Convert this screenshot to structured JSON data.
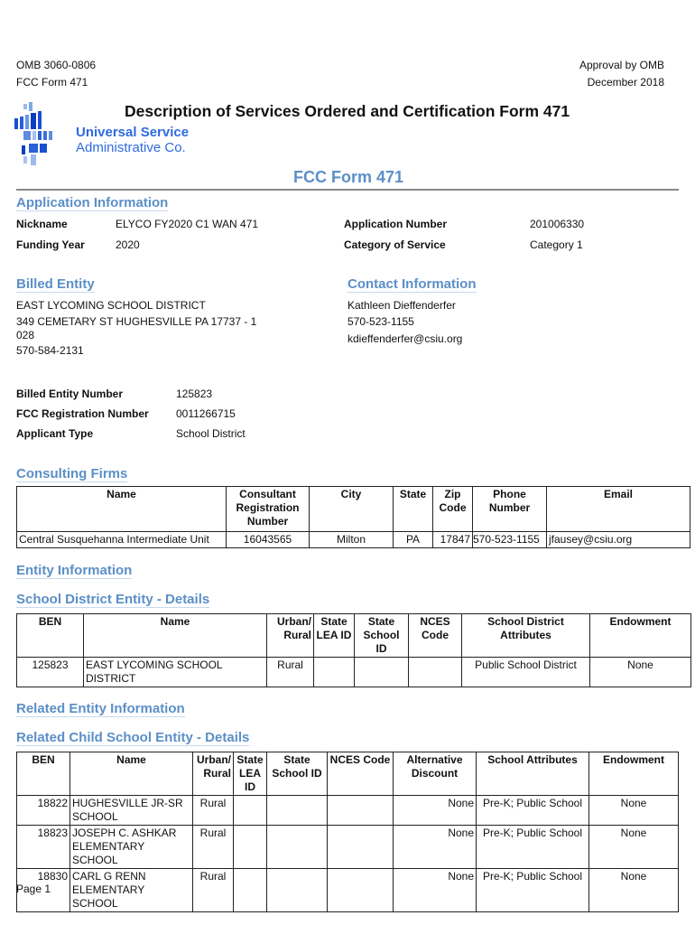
{
  "header": {
    "omb": "OMB 3060-0806",
    "form": "FCC Form 471",
    "approval": "Approval by OMB",
    "date": "December 2018",
    "title": "Description of Services Ordered and Certification Form 471",
    "logo_line1": "Universal Service",
    "logo_line2": "Administrative Co.",
    "subtitle": "FCC Form 471"
  },
  "application": {
    "heading": "Application Information",
    "nickname_label": "Nickname",
    "nickname": "ELYCO FY2020 C1 WAN 471",
    "funding_year_label": "Funding Year",
    "funding_year": "2020",
    "app_number_label": "Application Number",
    "app_number": "201006330",
    "category_label": "Category of Service",
    "category": "Category 1"
  },
  "billed": {
    "heading": "Billed Entity",
    "name": "EAST LYCOMING SCHOOL DISTRICT",
    "address1": "349 CEMETARY ST  HUGHESVILLE PA 17737 - 1",
    "address2": "028",
    "phone": "570-584-2131",
    "ben_label": "Billed Entity Number",
    "ben": "125823",
    "frn_label": "FCC Registration Number",
    "frn": "0011266715",
    "type_label": "Applicant Type",
    "type": "School District"
  },
  "contact": {
    "heading": "Contact Information",
    "name": "Kathleen Dieffenderfer",
    "phone": "570-523-1155",
    "email": "kdieffenderfer@csiu.org"
  },
  "consulting": {
    "heading": "Consulting Firms",
    "columns": [
      "Name",
      "Consultant Registration Number",
      "City",
      "State",
      "Zip Code",
      "Phone Number",
      "Email"
    ],
    "rows": [
      [
        "Central Susquehanna Intermediate Unit",
        "16043565",
        "Milton",
        "PA",
        "17847",
        "570-523-1155",
        "jfausey@csiu.org"
      ]
    ]
  },
  "entity": {
    "heading": "Entity Information",
    "district_heading": "School District Entity - Details",
    "columns": [
      "BEN",
      "Name",
      "Urban/ Rural",
      "State LEA ID",
      "State School ID",
      "NCES Code",
      "School District Attributes",
      "Endowment"
    ],
    "rows": [
      [
        "125823",
        "EAST LYCOMING SCHOOL DISTRICT",
        "Rural",
        "",
        "",
        "",
        "Public School District",
        "None"
      ]
    ]
  },
  "related": {
    "heading": "Related Entity Information",
    "child_heading": "Related Child School Entity - Details",
    "columns": [
      "BEN",
      "Name",
      "Urban/ Rural",
      "State LEA ID",
      "State School ID",
      "NCES Code",
      "Alternative Discount",
      "School Attributes",
      "Endowment"
    ],
    "rows": [
      [
        "18822",
        "HUGHESVILLE JR-SR SCHOOL",
        "Rural",
        "",
        "",
        "",
        "None",
        "Pre-K; Public School",
        "None"
      ],
      [
        "18823",
        "JOSEPH C. ASHKAR ELEMENTARY SCHOOL",
        "Rural",
        "",
        "",
        "",
        "None",
        "Pre-K; Public School",
        "None"
      ],
      [
        "18830",
        "CARL G RENN ELEMENTARY SCHOOL",
        "Rural",
        "",
        "",
        "",
        "None",
        "Pre-K; Public School",
        "None"
      ]
    ]
  },
  "footer": {
    "page": "Page 1"
  }
}
